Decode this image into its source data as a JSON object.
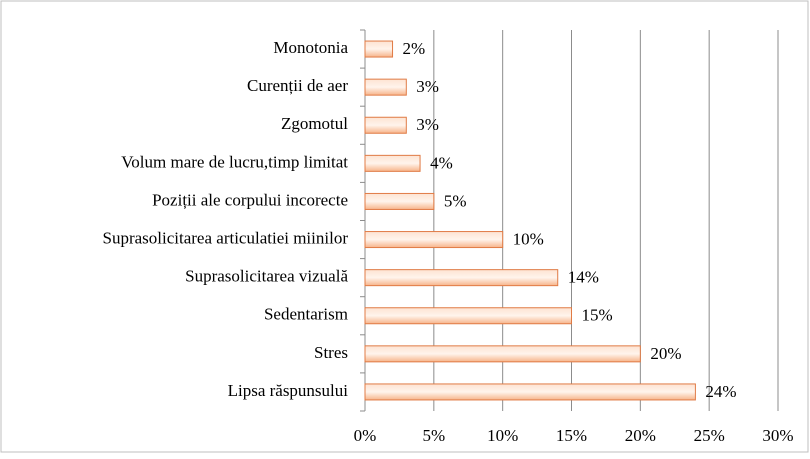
{
  "chart_data": {
    "type": "barh",
    "categories": [
      "Monotonia",
      "Curenții de aer",
      "Zgomotul",
      "Volum mare de lucru,timp limitat",
      "Poziții ale corpului incorecte",
      "Suprasolicitarea articulatiei miinilor",
      "Suprasolicitarea vizuală",
      "Sedentarism",
      "Stres",
      "Lipsa răspunsului"
    ],
    "values": [
      2,
      3,
      3,
      4,
      5,
      10,
      14,
      15,
      20,
      24
    ],
    "value_labels": [
      "2%",
      "3%",
      "3%",
      "4%",
      "5%",
      "10%",
      "14%",
      "15%",
      "20%",
      "24%"
    ],
    "color": "#f7b48a",
    "edgecolor": "#e07b45",
    "xlim": [
      0,
      30
    ],
    "xticks": [
      {
        "value": 0,
        "label": "0%"
      },
      {
        "value": 5,
        "label": "5%"
      },
      {
        "value": 10,
        "label": "10%"
      },
      {
        "value": 15,
        "label": "15%"
      },
      {
        "value": 20,
        "label": "20%"
      },
      {
        "value": 25,
        "label": "25%"
      },
      {
        "value": 30,
        "label": "30%"
      }
    ],
    "grid": true
  }
}
